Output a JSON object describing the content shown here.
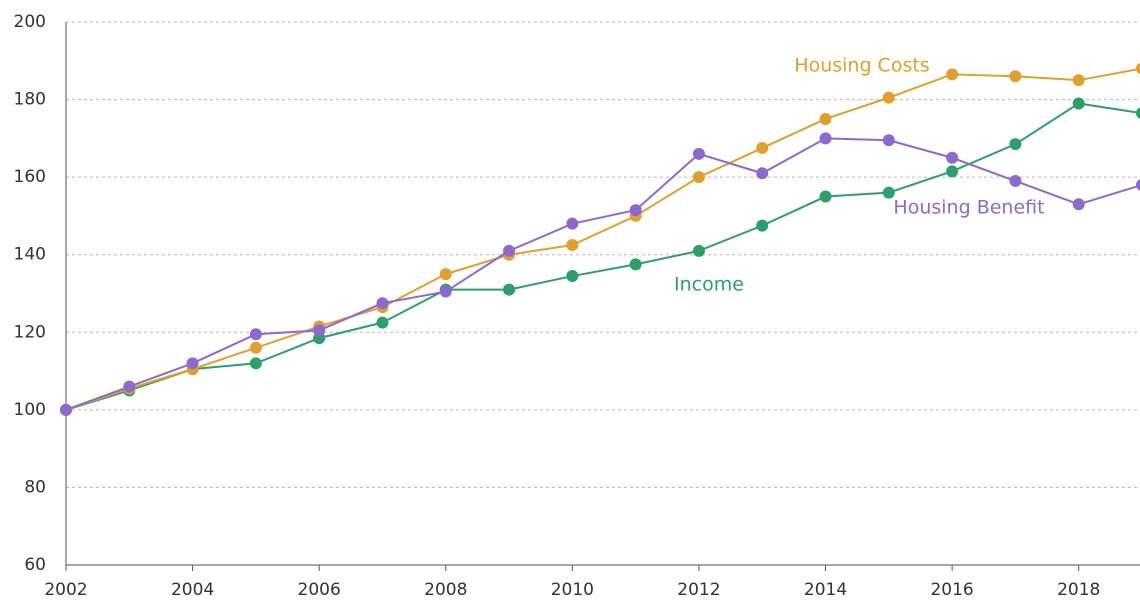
{
  "chart_data": {
    "type": "line",
    "x": [
      2002,
      2003,
      2004,
      2005,
      2006,
      2007,
      2008,
      2009,
      2010,
      2011,
      2012,
      2013,
      2014,
      2015,
      2016,
      2017,
      2018,
      2019
    ],
    "series": [
      {
        "name": "Income",
        "color": "#2e9e6a",
        "values": [
          100,
          105,
          110.5,
          112,
          118.5,
          122.5,
          131,
          131,
          134.5,
          137.5,
          141,
          147.5,
          155,
          156,
          161.5,
          168.5,
          179,
          176.5
        ]
      },
      {
        "name": "Housing Costs",
        "color": "#e0a030",
        "values": [
          100,
          105.5,
          110.5,
          116,
          121.5,
          126.5,
          135,
          140,
          142.5,
          150,
          160,
          167.5,
          175,
          180.5,
          186.5,
          186,
          185,
          188
        ]
      },
      {
        "name": "Housing Benefit",
        "color": "#8a6acd",
        "values": [
          100,
          106,
          112,
          119.5,
          120.5,
          127.5,
          130.5,
          141,
          148,
          151.5,
          166,
          161,
          170,
          169.5,
          165,
          159,
          153,
          158
        ]
      }
    ],
    "xlim": [
      2002,
      2019
    ],
    "xticks": [
      2002,
      2004,
      2006,
      2008,
      2010,
      2012,
      2014,
      2016,
      2018
    ],
    "ylim": [
      60,
      200
    ],
    "yticks": [
      60,
      80,
      100,
      120,
      140,
      160,
      180,
      200
    ],
    "grid": true
  }
}
